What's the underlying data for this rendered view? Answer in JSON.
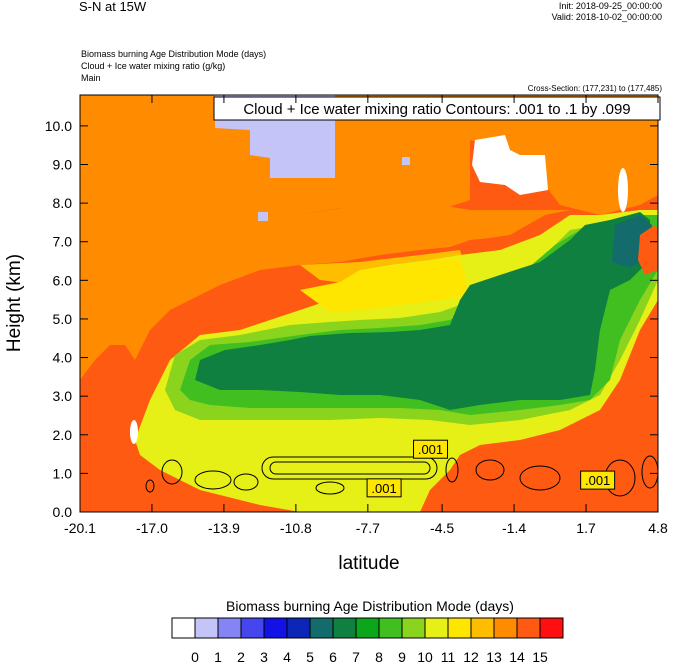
{
  "header": {
    "title": "S-N at 15W",
    "init": "Init: 2018-09-25_00:00:00",
    "valid": "Valid: 2018-10-02_00:00:00",
    "field1": "Biomass burning Age Distribution Mode   (days)",
    "field2": "Cloud + Ice water mixing ratio   (g/kg)",
    "field3": "Main",
    "cross_section": "Cross-Section: (177,231) to (177,485)"
  },
  "chart_data": {
    "type": "heatmap",
    "title": "Cloud + Ice water mixing ratio Contours: .001 to .1 by .099",
    "xlabel": "latitude",
    "ylabel": "Height (km)",
    "xlim": [
      -20.1,
      4.8
    ],
    "ylim": [
      0,
      10.8
    ],
    "x_ticks": [
      "-20.1",
      "-17.0",
      "-13.9",
      "-10.8",
      "-7.7",
      "-4.5",
      "-1.4",
      "1.7",
      "4.8"
    ],
    "x_tick_values": [
      -20.1,
      -17.0,
      -13.9,
      -10.8,
      -7.7,
      -4.5,
      -1.4,
      1.7,
      4.8
    ],
    "y_ticks": [
      "0.0",
      "1.0",
      "2.0",
      "3.0",
      "4.0",
      "5.0",
      "6.0",
      "7.0",
      "8.0",
      "9.0",
      "10.0"
    ],
    "y_tick_values": [
      0,
      1,
      2,
      3,
      4,
      5,
      6,
      7,
      8,
      9,
      10
    ],
    "contour_labels": [
      {
        "text": ".001",
        "x": -5.0,
        "y": 1.6
      },
      {
        "text": ".001",
        "x": -7.0,
        "y": 0.6
      },
      {
        "text": ".001",
        "x": 2.2,
        "y": 0.8
      }
    ],
    "colorbar": {
      "title": "Biomass burning Age Distribution Mode  (days)",
      "labels": [
        "0",
        "1",
        "2",
        "3",
        "4",
        "5",
        "6",
        "7",
        "8",
        "9",
        "10",
        "11",
        "12",
        "13",
        "14",
        "15"
      ],
      "colors": [
        "#ffffff",
        "#c4c4f8",
        "#8484f4",
        "#4646ee",
        "#1212e6",
        "#0c26b8",
        "#136b6b",
        "#108040",
        "#0ca61a",
        "#42bf20",
        "#8ad41e",
        "#e6ef16",
        "#ffe600",
        "#ffbd00",
        "#ff8c00",
        "#ff5a12",
        "#ff0f0f"
      ]
    },
    "regions": [
      {
        "label": "11",
        "note": "yellow band, mid-levels",
        "x": [
          -16.5,
          3.5
        ],
        "y": [
          0.6,
          7.5
        ]
      },
      {
        "label": "6-7",
        "note": "dark green core",
        "x": [
          -14.5,
          3.0
        ],
        "y": [
          2.5,
          7.6
        ]
      },
      {
        "label": "13-14",
        "note": "orange upper region",
        "x": [
          -20.1,
          -5.0
        ],
        "y": [
          5.5,
          10.8
        ]
      },
      {
        "label": "15",
        "note": "red-orange lower/background",
        "x": [
          -20.1,
          4.8
        ],
        "y": [
          0,
          10.8
        ]
      },
      {
        "label": "1",
        "note": "lavender patch aloft",
        "x": [
          -13.5,
          -9.0
        ],
        "y": [
          8.8,
          10.8
        ]
      },
      {
        "label": "0",
        "note": "white patch aloft",
        "x": [
          -4.0,
          -1.0
        ],
        "y": [
          8.2,
          9.7
        ]
      }
    ]
  }
}
